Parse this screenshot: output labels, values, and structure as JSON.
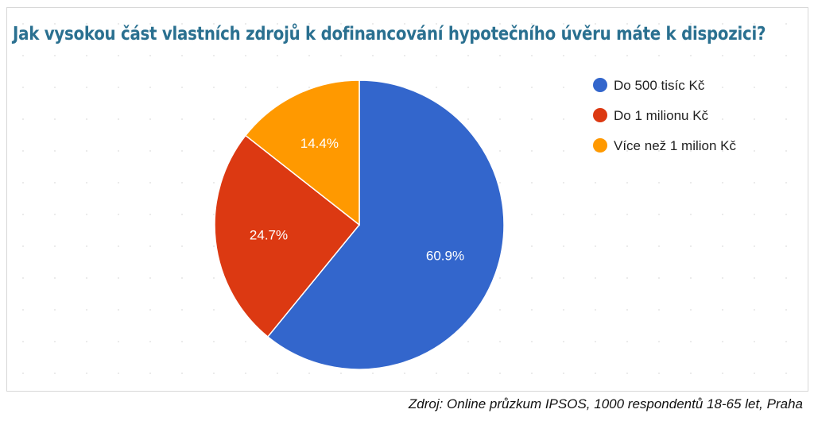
{
  "chart_data": {
    "type": "pie",
    "title": "Jak vysokou část vlastních zdrojů k dofinancování hypotečního úvěru máte k dispozici?",
    "slices": [
      {
        "label": "Do 500 tisíc Kč",
        "value": 60.9,
        "data_label": "60.9%",
        "color": "#3366cc"
      },
      {
        "label": "Do 1 milionu Kč",
        "value": 24.7,
        "data_label": "24.7%",
        "color": "#dc3912"
      },
      {
        "label": "Více než 1 milion Kč",
        "value": 14.4,
        "data_label": "14.4%",
        "color": "#ff9900"
      }
    ],
    "start_angle": "top",
    "direction": "clockwise",
    "legend_position": "right"
  },
  "source": "Zdroj: Online průzkum IPSOS, 1000 respondentů 18-65 let, Praha"
}
